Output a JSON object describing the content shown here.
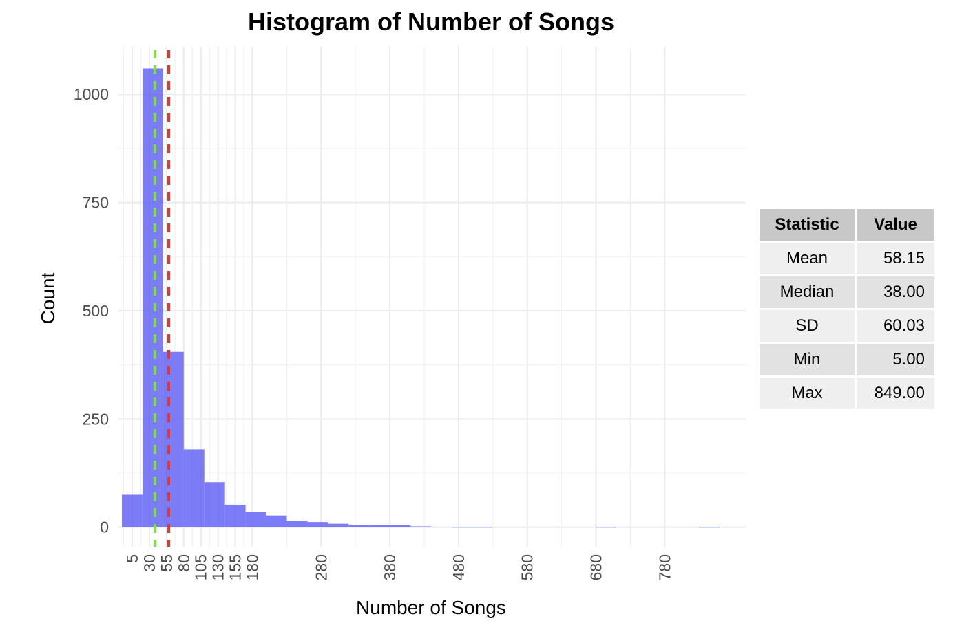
{
  "chart_data": {
    "type": "bar",
    "title": "Histogram of Number of Songs",
    "xlabel": "Number of Songs",
    "ylabel": "Count",
    "ylim": [
      -45,
      1110
    ],
    "xlim": [
      -15,
      898
    ],
    "yticks": [
      0,
      250,
      500,
      750,
      1000
    ],
    "xticks": [
      5,
      30,
      55,
      80,
      105,
      130,
      155,
      180,
      280,
      380,
      480,
      580,
      680,
      780
    ],
    "bin_edges": [
      5,
      35,
      65,
      95,
      125,
      155,
      185,
      215,
      245,
      275,
      305,
      335,
      365,
      395,
      425,
      455,
      485,
      515,
      545,
      575,
      605,
      635,
      665,
      695,
      725,
      755,
      785,
      815,
      845
    ],
    "counts": [
      75,
      1060,
      405,
      180,
      104,
      52,
      36,
      27,
      14,
      12,
      8,
      5,
      5,
      5,
      2,
      0,
      1,
      1,
      0,
      0,
      0,
      0,
      0,
      1,
      0,
      0,
      0,
      0,
      1
    ],
    "bar_color": "#5B5BF5",
    "mean": 58.15,
    "median": 38.0,
    "mean_line_color": "#E8372C",
    "median_line_color": "#7EE046",
    "grid": true
  },
  "table": {
    "header": [
      "Statistic",
      "Value"
    ],
    "rows": [
      [
        "Mean",
        "58.15"
      ],
      [
        "Median",
        "38.00"
      ],
      [
        "SD",
        "60.03"
      ],
      [
        "Min",
        "5.00"
      ],
      [
        "Max",
        "849.00"
      ]
    ]
  }
}
